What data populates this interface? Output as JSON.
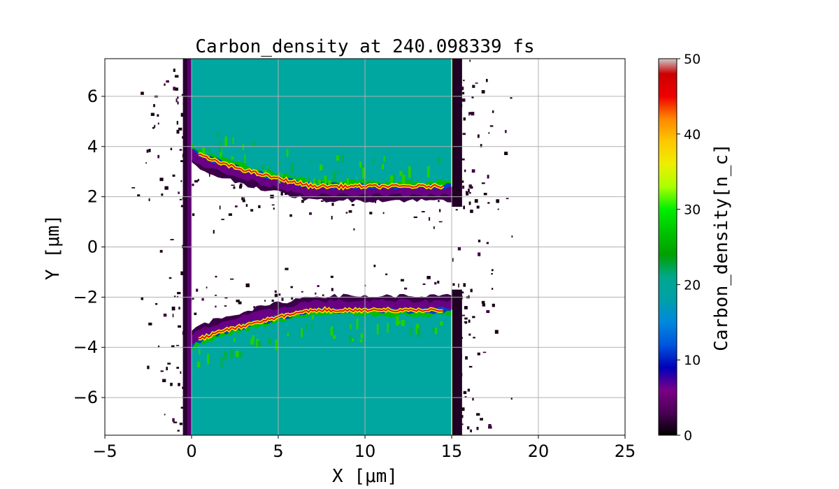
{
  "chart_data": {
    "type": "heatmap",
    "title": "Carbon_density at 240.098339 fs",
    "xlabel": "X  [μm]",
    "ylabel": "Y  [μm]",
    "xlim": [
      -5,
      25
    ],
    "ylim": [
      -7.5,
      7.5
    ],
    "xticks": [
      "−5",
      "0",
      "5",
      "10",
      "15",
      "20",
      "25"
    ],
    "xtick_values": [
      -5,
      0,
      5,
      10,
      15,
      20,
      25
    ],
    "yticks": [
      "−6",
      "−4",
      "−2",
      "0",
      "2",
      "4",
      "6"
    ],
    "ytick_values": [
      -6,
      -4,
      -2,
      0,
      2,
      4,
      6
    ],
    "grid": true,
    "colorbar": {
      "label": "Carbon_density[n_c]",
      "range": [
        0,
        50
      ],
      "ticks": [
        "0",
        "10",
        "20",
        "30",
        "40",
        "50"
      ],
      "tick_values": [
        0,
        10,
        20,
        30,
        40,
        50
      ],
      "colormap": "nipy_spectral"
    },
    "regions": {
      "target_x_range": [
        0,
        15
      ],
      "target_density": 20,
      "upper_slab_edge_y_at_x0": 3.9,
      "upper_slab_edge_y_at_x15": 2.4,
      "lower_slab_edge_y_at_x0": -3.9,
      "lower_slab_edge_y_at_x15": -2.5,
      "compressed_layer_peak_density": 45,
      "low_density_halo_x_range": [
        -3.5,
        18.5
      ],
      "channel_y_range": [
        -2,
        2
      ]
    }
  }
}
